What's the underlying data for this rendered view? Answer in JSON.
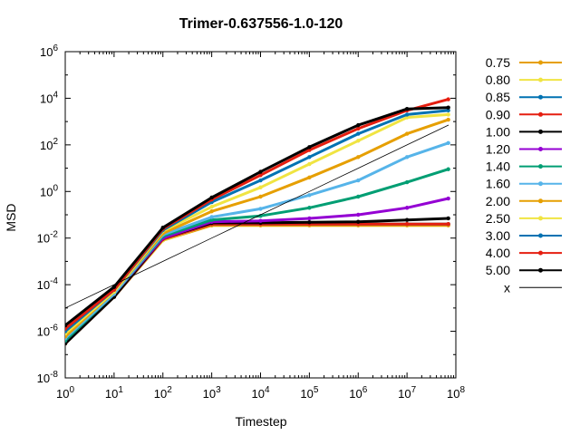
{
  "chart_data": {
    "type": "line",
    "title": "Trimer-0.637556-1.0-120",
    "xlabel": "Timestep",
    "ylabel": "MSD",
    "xscale": "log",
    "yscale": "log",
    "xlim": [
      1,
      100000000
    ],
    "ylim": [
      1e-08,
      1000000
    ],
    "x_ticks": [
      {
        "base": "10",
        "exp": "0"
      },
      {
        "base": "10",
        "exp": "1"
      },
      {
        "base": "10",
        "exp": "2"
      },
      {
        "base": "10",
        "exp": "3"
      },
      {
        "base": "10",
        "exp": "4"
      },
      {
        "base": "10",
        "exp": "5"
      },
      {
        "base": "10",
        "exp": "6"
      },
      {
        "base": "10",
        "exp": "7"
      },
      {
        "base": "10",
        "exp": "8"
      }
    ],
    "y_ticks": [
      {
        "base": "10",
        "exp": "-8"
      },
      {
        "base": "10",
        "exp": "-6"
      },
      {
        "base": "10",
        "exp": "-4"
      },
      {
        "base": "10",
        "exp": "-2"
      },
      {
        "base": "10",
        "exp": "0"
      },
      {
        "base": "10",
        "exp": "2"
      },
      {
        "base": "10",
        "exp": "4"
      },
      {
        "base": "10",
        "exp": "6"
      }
    ],
    "legend_position": "right, outside",
    "grid": false,
    "x": [
      1,
      10,
      100,
      1000,
      10000,
      100000,
      1000000,
      10000000,
      70000000
    ],
    "series": [
      {
        "name": "0.75",
        "color": "#e69f00",
        "values": [
          3e-07,
          3e-05,
          0.008,
          0.035,
          0.035,
          0.035,
          0.035,
          0.035,
          0.035
        ]
      },
      {
        "name": "0.80",
        "color": "#f0e442",
        "values": [
          3e-07,
          3e-05,
          0.008,
          0.04,
          0.04,
          0.04,
          0.04,
          0.04,
          0.04
        ]
      },
      {
        "name": "0.85",
        "color": "#0072b2",
        "values": [
          3e-07,
          3e-05,
          0.009,
          0.04,
          0.04,
          0.04,
          0.04,
          0.04,
          0.04
        ]
      },
      {
        "name": "0.90",
        "color": "#e51e10",
        "values": [
          3e-07,
          3e-05,
          0.009,
          0.04,
          0.04,
          0.04,
          0.04,
          0.04,
          0.04
        ]
      },
      {
        "name": "1.00",
        "color": "#000000",
        "values": [
          3e-07,
          3e-05,
          0.01,
          0.045,
          0.045,
          0.048,
          0.05,
          0.06,
          0.07
        ]
      },
      {
        "name": "1.20",
        "color": "#9400d3",
        "values": [
          4e-07,
          4e-05,
          0.01,
          0.05,
          0.055,
          0.07,
          0.1,
          0.2,
          0.5
        ]
      },
      {
        "name": "1.40",
        "color": "#009e73",
        "values": [
          4e-07,
          4e-05,
          0.012,
          0.06,
          0.09,
          0.2,
          0.6,
          2.5,
          9
        ]
      },
      {
        "name": "1.60",
        "color": "#56b4e9",
        "values": [
          5e-07,
          4e-05,
          0.014,
          0.08,
          0.18,
          0.7,
          3,
          30,
          120
        ]
      },
      {
        "name": "2.00",
        "color": "#e69f00",
        "values": [
          6e-07,
          5e-05,
          0.016,
          0.14,
          0.6,
          4,
          30,
          300,
          1200
        ]
      },
      {
        "name": "2.50",
        "color": "#f0e442",
        "values": [
          8e-07,
          5e-05,
          0.02,
          0.22,
          1.5,
          15,
          150,
          1500,
          2000
        ]
      },
      {
        "name": "3.00",
        "color": "#0072b2",
        "values": [
          1e-06,
          6e-05,
          0.022,
          0.35,
          3,
          30,
          300,
          2000,
          3000
        ]
      },
      {
        "name": "4.00",
        "color": "#e51e10",
        "values": [
          1.3e-06,
          6e-05,
          0.025,
          0.45,
          5,
          60,
          500,
          3000,
          9000
        ]
      },
      {
        "name": "5.00",
        "color": "#000000",
        "values": [
          1.8e-06,
          8e-05,
          0.028,
          0.55,
          7,
          80,
          700,
          3500,
          4000
        ]
      },
      {
        "name": "x",
        "color": "#000000",
        "reference": true,
        "values": [
          1e-05,
          0.0001,
          0.001,
          0.01,
          0.1,
          1,
          10,
          100,
          700
        ]
      }
    ]
  }
}
